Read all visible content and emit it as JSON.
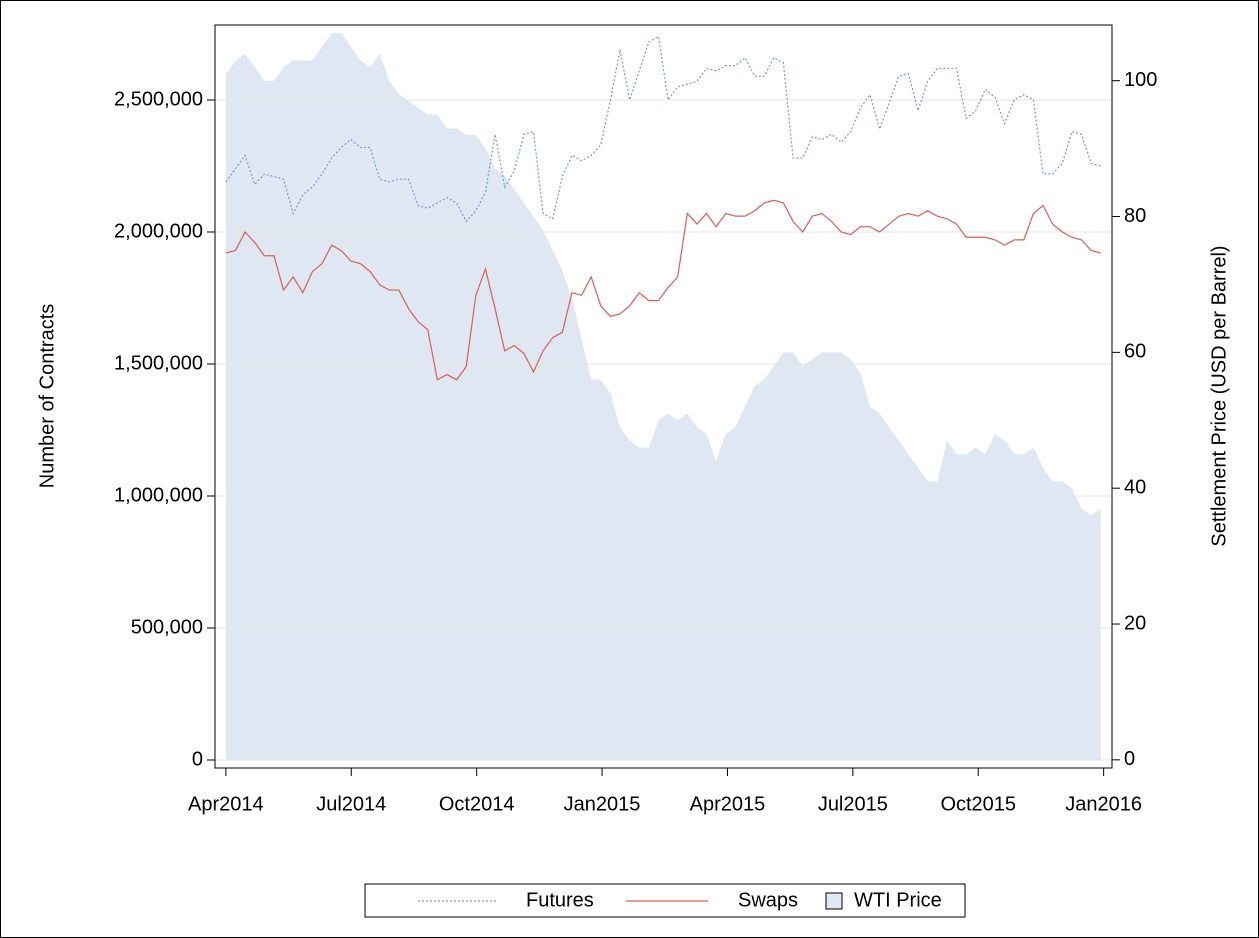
{
  "chart_data": {
    "type": "line",
    "y_label": "Number of Contracts",
    "y2_label": "Settlement Price (USD per Barrel)",
    "x": [
      0,
      0.23,
      0.46,
      0.69,
      0.92,
      1.15,
      1.38,
      1.61,
      1.84,
      2.07,
      2.3,
      2.53,
      2.76,
      2.99,
      3.22,
      3.45,
      3.68,
      3.91,
      4.14,
      4.37,
      4.6,
      4.83,
      5.06,
      5.29,
      5.52,
      5.75,
      5.98,
      6.21,
      6.44,
      6.67,
      6.9,
      7.13,
      7.36,
      7.59,
      7.82,
      8.05,
      8.28,
      8.51,
      8.74,
      8.97,
      9.2,
      9.43,
      9.66,
      9.89,
      10.12,
      10.35,
      10.58,
      10.81,
      11.04,
      11.27,
      11.5,
      11.73,
      11.96,
      12.19,
      12.42,
      12.65,
      12.88,
      13.11,
      13.34,
      13.57,
      13.8,
      14.03,
      14.26,
      14.49,
      14.72,
      14.95,
      15.18,
      15.41,
      15.64,
      15.87,
      16.1,
      16.33,
      16.56,
      16.79,
      17.02,
      17.25,
      17.48,
      17.71,
      17.94,
      18.17,
      18.4,
      18.63,
      18.86,
      19.09,
      19.32,
      19.55,
      19.78,
      20.01,
      20.24,
      20.47,
      20.7,
      20.93
    ],
    "series": [
      {
        "name": "Futures",
        "color": "#7b96d8",
        "line_style": "dotted",
        "values": [
          2190000,
          2240000,
          2290000,
          2180000,
          2220000,
          2210000,
          2200000,
          2070000,
          2140000,
          2170000,
          2220000,
          2280000,
          2320000,
          2350000,
          2320000,
          2320000,
          2200000,
          2190000,
          2200000,
          2200000,
          2100000,
          2090000,
          2110000,
          2130000,
          2110000,
          2040000,
          2080000,
          2150000,
          2370000,
          2170000,
          2230000,
          2370000,
          2380000,
          2070000,
          2050000,
          2210000,
          2290000,
          2270000,
          2290000,
          2330000,
          2500000,
          2690000,
          2500000,
          2610000,
          2720000,
          2740000,
          2500000,
          2550000,
          2560000,
          2570000,
          2620000,
          2610000,
          2630000,
          2630000,
          2660000,
          2590000,
          2590000,
          2660000,
          2640000,
          2280000,
          2280000,
          2360000,
          2350000,
          2370000,
          2340000,
          2380000,
          2470000,
          2520000,
          2390000,
          2490000,
          2590000,
          2600000,
          2460000,
          2570000,
          2620000,
          2620000,
          2620000,
          2430000,
          2460000,
          2540000,
          2510000,
          2410000,
          2500000,
          2520000,
          2500000,
          2220000,
          2220000,
          2260000,
          2380000,
          2370000,
          2260000,
          2250000
        ]
      },
      {
        "name": "Swaps",
        "color": "#d9604f",
        "line_style": "solid",
        "values": [
          1920000,
          1930000,
          2000000,
          1960000,
          1910000,
          1910000,
          1780000,
          1830000,
          1770000,
          1850000,
          1880000,
          1950000,
          1930000,
          1890000,
          1880000,
          1850000,
          1800000,
          1780000,
          1780000,
          1710000,
          1660000,
          1630000,
          1440000,
          1460000,
          1440000,
          1490000,
          1760000,
          1860000,
          1710000,
          1550000,
          1570000,
          1540000,
          1470000,
          1550000,
          1600000,
          1620000,
          1770000,
          1760000,
          1830000,
          1720000,
          1680000,
          1690000,
          1720000,
          1770000,
          1740000,
          1740000,
          1790000,
          1830000,
          2070000,
          2030000,
          2070000,
          2020000,
          2070000,
          2060000,
          2060000,
          2080000,
          2110000,
          2120000,
          2110000,
          2040000,
          2000000,
          2060000,
          2070000,
          2040000,
          2000000,
          1990000,
          2020000,
          2020000,
          2000000,
          2030000,
          2060000,
          2070000,
          2060000,
          2080000,
          2060000,
          2050000,
          2030000,
          1980000,
          1980000,
          1980000,
          1970000,
          1950000,
          1970000,
          1970000,
          2070000,
          2100000,
          2030000,
          2000000,
          1980000,
          1970000,
          1930000,
          1920000
        ]
      },
      {
        "name": "WTI Price",
        "color": "#dfe7f2",
        "type": "area",
        "axis": "y2",
        "values": [
          101,
          103,
          104,
          102,
          100,
          100,
          102,
          103,
          103,
          103,
          105,
          107,
          107,
          105,
          103,
          102,
          104,
          100,
          98,
          97,
          96,
          95,
          95,
          93,
          93,
          92,
          92,
          90,
          87,
          86,
          84,
          82,
          80,
          78,
          75,
          72,
          68,
          62,
          56,
          56,
          54,
          49,
          47,
          46,
          46,
          50,
          51,
          50,
          51,
          49,
          48,
          44,
          48,
          49,
          52,
          55,
          56,
          58,
          60,
          60,
          58,
          59,
          60,
          60,
          60,
          59,
          57,
          52,
          51,
          49,
          47,
          45,
          43,
          41,
          41,
          47,
          45,
          45,
          46,
          45,
          48,
          47,
          45,
          45,
          46,
          43,
          41,
          41,
          40,
          37,
          36,
          37
        ]
      }
    ],
    "xlim": [
      -0.26,
      21.2
    ],
    "xticks": [
      {
        "value": 0,
        "label": "Apr2014"
      },
      {
        "value": 3,
        "label": "Jul2014"
      },
      {
        "value": 6,
        "label": "Oct2014"
      },
      {
        "value": 9,
        "label": "Jan2015"
      },
      {
        "value": 12,
        "label": "Apr2015"
      },
      {
        "value": 15,
        "label": "Jul2015"
      },
      {
        "value": 18,
        "label": "Oct2015"
      },
      {
        "value": 21,
        "label": "Jan2016"
      }
    ],
    "ylim": [
      -30300,
      2784000
    ],
    "yticks": [
      0,
      {
        "value": 500000,
        "label": "500,000"
      },
      {
        "value": 1000000,
        "label": "1,000,000"
      },
      {
        "value": 1500000,
        "label": "1,500,000"
      },
      {
        "value": 2000000,
        "label": "2,000,000"
      },
      {
        "value": 2500000,
        "label": "2,500,000"
      }
    ],
    "y2lim": [
      -1.2,
      108.2
    ],
    "y2ticks": [
      0,
      20,
      40,
      60,
      80,
      100
    ],
    "grid": true,
    "legend": "bottom"
  }
}
